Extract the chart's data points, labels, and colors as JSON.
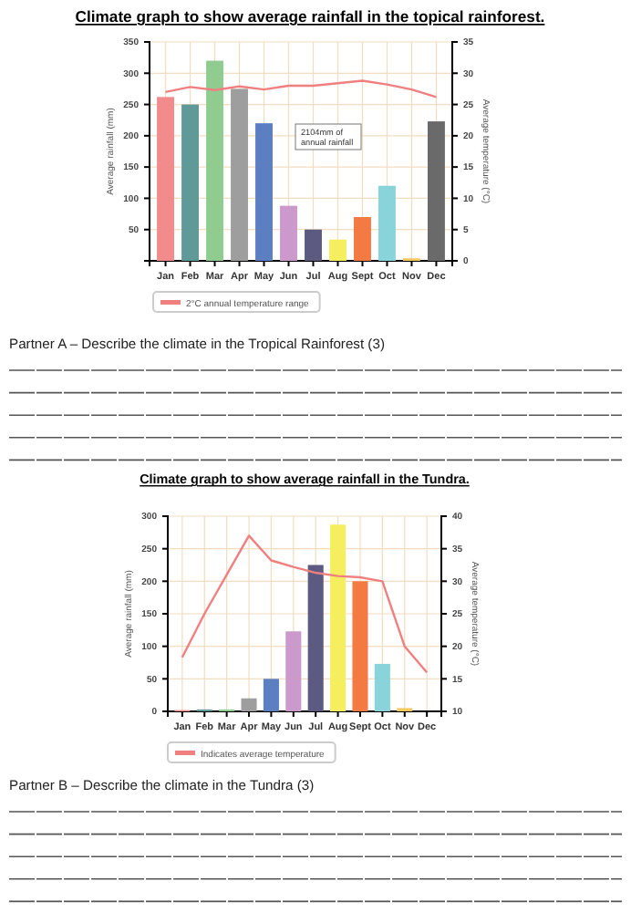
{
  "chart_data": [
    {
      "type": "bar",
      "title": "Climate graph to show average rainfall in the topical rainforest.",
      "ylabel": "Average rainfall (mm)",
      "y2label": "Average temperature (°C)",
      "categories": [
        "Jan",
        "Feb",
        "Mar",
        "Apr",
        "May",
        "Jun",
        "Jul",
        "Aug",
        "Sept",
        "Oct",
        "Nov",
        "Dec"
      ],
      "series": [
        {
          "colors": [
            "#f28b8b",
            "#5f9a98",
            "#90cc90",
            "#9e9e9e",
            "#5b7fc0",
            "#cc99cc",
            "#5c5a80",
            "#f5ef60",
            "#f47a44",
            "#88d4da",
            "#f5c860",
            "#6a6a6a"
          ],
          "values": [
            262,
            250,
            320,
            275,
            220,
            88,
            50,
            34,
            70,
            120,
            4,
            223
          ]
        },
        {
          "type": "line",
          "name": "2°C annual temperature range",
          "color": "#f08080",
          "axis": "y2",
          "values": [
            27,
            27.8,
            27.3,
            27.9,
            27.4,
            28,
            28,
            28.4,
            28.8,
            28.2,
            27.4,
            26.2
          ]
        }
      ],
      "ylim": [
        0,
        350
      ],
      "yticks": [
        {
          "value": 0,
          "label": null
        },
        50,
        100,
        150,
        200,
        250,
        300,
        350
      ],
      "y2lim": [
        0,
        35
      ],
      "y2ticks": [
        0,
        5,
        10,
        15,
        20,
        25,
        30,
        35
      ],
      "grid": true,
      "legend": "bottom",
      "annotations": [
        "2104mm of annual rainfall",
        "Partner A – Describe the climate in the Tropical Rainforest (3)"
      ]
    },
    {
      "type": "bar",
      "title": "Climate graph to show average rainfall in the Tundra.",
      "ylabel": "Average rainfall (mm)",
      "y2label": "Average temperature (°C)",
      "categories": [
        "Jan",
        "Feb",
        "Mar",
        "Apr",
        "May",
        "Jun",
        "Jul",
        "Aug",
        "Sept",
        "Oct",
        "Nov",
        "Dec"
      ],
      "series": [
        {
          "colors": [
            "#f28b8b",
            "#5f9a98",
            "#90cc90",
            "#9e9e9e",
            "#5b7fc0",
            "#cc99cc",
            "#5c5a80",
            "#f5ef60",
            "#f47a44",
            "#88d4da",
            "#f5c860",
            "#6a6a6a"
          ],
          "values": [
            2,
            3,
            3,
            20,
            50,
            123,
            225,
            287,
            200,
            73,
            5,
            0
          ]
        },
        {
          "type": "line",
          "name": "Indicates average temperature",
          "color": "#f08080",
          "axis": "y2",
          "values": [
            18.3,
            25,
            31,
            37,
            33.2,
            32.2,
            31.3,
            30.8,
            30.6,
            30,
            20,
            16
          ]
        }
      ],
      "ylim": [
        0,
        300
      ],
      "yticks": [
        0,
        50,
        100,
        150,
        200,
        250,
        300
      ],
      "y2lim": [
        10,
        40
      ],
      "y2ticks": [
        10,
        15,
        20,
        25,
        30,
        35,
        40
      ],
      "grid": true,
      "legend": "bottom",
      "annotations": [
        "Partner B – Describe the climate in the Tundra (3)"
      ]
    }
  ]
}
